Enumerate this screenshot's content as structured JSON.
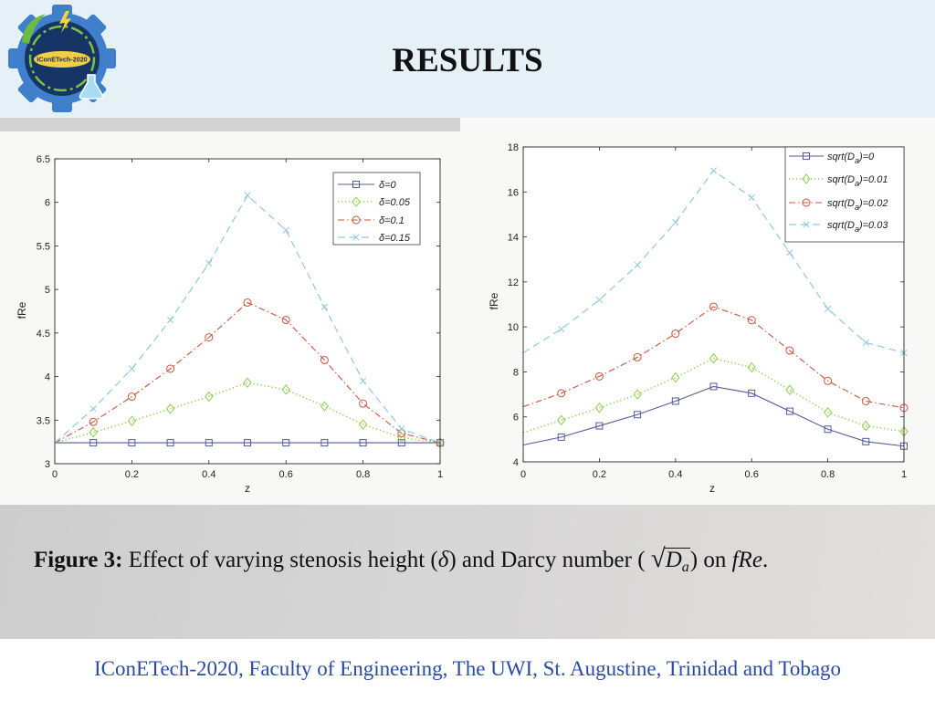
{
  "theme": {
    "header_bg": "#e5f1f7",
    "footer_text_color": "#2a4aa8"
  },
  "header": {
    "title": "RESULTS",
    "logo_text": "IConETech-2020"
  },
  "chart_data": [
    {
      "type": "line",
      "xlabel": "z",
      "ylabel": "fRe",
      "xlim": [
        0,
        1
      ],
      "ylim": [
        3,
        6.5
      ],
      "xticks": [
        0,
        0.2,
        0.4,
        0.6,
        0.8,
        1
      ],
      "yticks": [
        3,
        3.5,
        4,
        4.5,
        5,
        5.5,
        6,
        6.5
      ],
      "grid": false,
      "legend_position": "top-right",
      "x": [
        0,
        0.1,
        0.2,
        0.3,
        0.4,
        0.5,
        0.6,
        0.7,
        0.8,
        0.9,
        1
      ],
      "series": [
        {
          "name": "δ=0",
          "color": "#55599d",
          "line_style": "solid",
          "marker": "square",
          "values": [
            3.24,
            3.24,
            3.24,
            3.24,
            3.24,
            3.24,
            3.24,
            3.24,
            3.24,
            3.24,
            3.24
          ]
        },
        {
          "name": "δ=0.05",
          "color": "#8fce4c",
          "line_style": "dotted",
          "marker": "diamond",
          "values": [
            3.24,
            3.36,
            3.49,
            3.63,
            3.77,
            3.93,
            3.85,
            3.66,
            3.45,
            3.3,
            3.24
          ]
        },
        {
          "name": "δ=0.1",
          "color": "#c9543d",
          "line_style": "dash-dot",
          "marker": "circle",
          "values": [
            3.24,
            3.48,
            3.77,
            4.09,
            4.45,
            4.85,
            4.65,
            4.19,
            3.69,
            3.35,
            3.24
          ]
        },
        {
          "name": "δ=0.15",
          "color": "#92c9d9",
          "line_style": "dashed",
          "marker": "x",
          "values": [
            3.24,
            3.63,
            4.09,
            4.65,
            5.3,
            6.08,
            5.68,
            4.8,
            3.95,
            3.4,
            3.24
          ]
        }
      ]
    },
    {
      "type": "line",
      "xlabel": "z",
      "ylabel": "fRe",
      "xlim": [
        0,
        1
      ],
      "ylim": [
        4,
        18
      ],
      "xticks": [
        0,
        0.2,
        0.4,
        0.6,
        0.8,
        1
      ],
      "yticks": [
        4,
        6,
        8,
        10,
        12,
        14,
        16,
        18
      ],
      "grid": false,
      "legend_position": "top-right",
      "x": [
        0,
        0.1,
        0.2,
        0.3,
        0.4,
        0.5,
        0.6,
        0.7,
        0.8,
        0.9,
        1
      ],
      "series": [
        {
          "name": {
            "pre": "sqrt(D",
            "sub": "a",
            "post": ")=0"
          },
          "color": "#55599d",
          "line_style": "solid",
          "marker": "square",
          "values": [
            4.75,
            5.1,
            5.6,
            6.1,
            6.7,
            7.35,
            7.05,
            6.25,
            5.45,
            4.9,
            4.7
          ]
        },
        {
          "name": {
            "pre": "sqrt(D",
            "sub": "a",
            "post": ")=0.01"
          },
          "color": "#8fce4c",
          "line_style": "dotted",
          "marker": "diamond",
          "values": [
            5.3,
            5.85,
            6.4,
            7.0,
            7.75,
            8.6,
            8.2,
            7.2,
            6.2,
            5.6,
            5.35
          ]
        },
        {
          "name": {
            "pre": "sqrt(D",
            "sub": "a",
            "post": ")=0.02"
          },
          "color": "#c9543d",
          "line_style": "dash-dot",
          "marker": "circle",
          "values": [
            6.45,
            7.05,
            7.8,
            8.65,
            9.7,
            10.9,
            10.3,
            8.95,
            7.6,
            6.7,
            6.4
          ]
        },
        {
          "name": {
            "pre": "sqrt(D",
            "sub": "a",
            "post": ")=0.03"
          },
          "color": "#92c9d9",
          "line_style": "dashed",
          "marker": "x",
          "values": [
            8.85,
            9.9,
            11.2,
            12.75,
            14.65,
            16.95,
            15.75,
            13.3,
            10.8,
            9.3,
            8.85
          ]
        }
      ]
    }
  ],
  "caption": {
    "label": "Figure 3:",
    "text_1": "Effect of varying stenosis height (",
    "delta": "δ",
    "text_2": ") and Darcy number (",
    "radical": "√",
    "sqrt_var": "D",
    "sqrt_sub": "a",
    "text_3": ") on",
    "fre": "fRe",
    "end": "."
  },
  "footer": {
    "text": "IConETech-2020, Faculty of Engineering, The UWI, St. Augustine, Trinidad and Tobago"
  }
}
